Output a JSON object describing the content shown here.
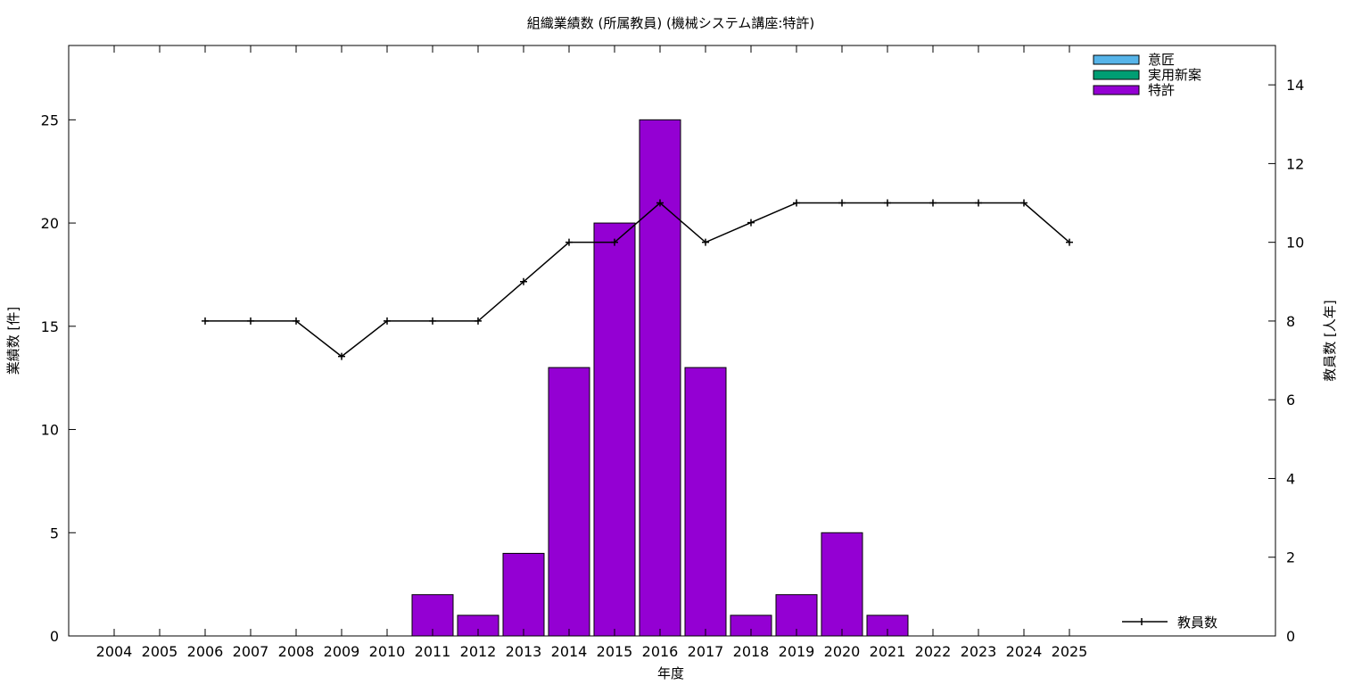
{
  "chart_data": {
    "type": "bar",
    "title": "組織業績数 (所属教員) (機械システム講座:特許)",
    "xlabel": "年度",
    "ylabel": "業績数 [件]",
    "y2label": "教員数 [人年]",
    "categories": [
      "2004",
      "2005",
      "2006",
      "2007",
      "2008",
      "2009",
      "2010",
      "2011",
      "2012",
      "2013",
      "2014",
      "2015",
      "2016",
      "2017",
      "2018",
      "2019",
      "2020",
      "2021",
      "2022",
      "2023",
      "2024",
      "2025"
    ],
    "ylim": [
      0,
      28.6
    ],
    "y2lim": [
      0,
      15
    ],
    "yticks": [
      0,
      5,
      10,
      15,
      20,
      25
    ],
    "y2ticks": [
      0,
      2,
      4,
      6,
      8,
      10,
      12,
      14
    ],
    "legend_position": "top-right",
    "series": [
      {
        "name": "意匠",
        "color": "#56B4E9",
        "values": [
          0,
          0,
          0,
          0,
          0,
          0,
          0,
          0,
          0,
          0,
          0,
          0,
          0,
          0,
          0,
          0,
          0,
          0,
          0,
          0,
          0,
          0
        ]
      },
      {
        "name": "実用新案",
        "color": "#009E73",
        "values": [
          0,
          0,
          0,
          0,
          0,
          0,
          0,
          0,
          0,
          0,
          0,
          0,
          0,
          0,
          0,
          0,
          0,
          0,
          0,
          0,
          0,
          0
        ]
      },
      {
        "name": "特許",
        "color": "#9400D3",
        "values": [
          0,
          0,
          0,
          0,
          0,
          0,
          0,
          2,
          1,
          4,
          13,
          20,
          25,
          13,
          1,
          2,
          5,
          1,
          0,
          0,
          0,
          0
        ]
      }
    ],
    "line_series": {
      "name": "教員数",
      "axis": "y2",
      "color": "#000000",
      "x": [
        "2006",
        "2007",
        "2008",
        "2009",
        "2010",
        "2011",
        "2012",
        "2013",
        "2014",
        "2015",
        "2016",
        "2017",
        "2018",
        "2019",
        "2020",
        "2021",
        "2022",
        "2023",
        "2024",
        "2025"
      ],
      "values": [
        8,
        8,
        8,
        7.1,
        8,
        8,
        8,
        9,
        10,
        10,
        11,
        10,
        10.5,
        11,
        11,
        11,
        11,
        11,
        11,
        10
      ]
    },
    "grid": false
  }
}
